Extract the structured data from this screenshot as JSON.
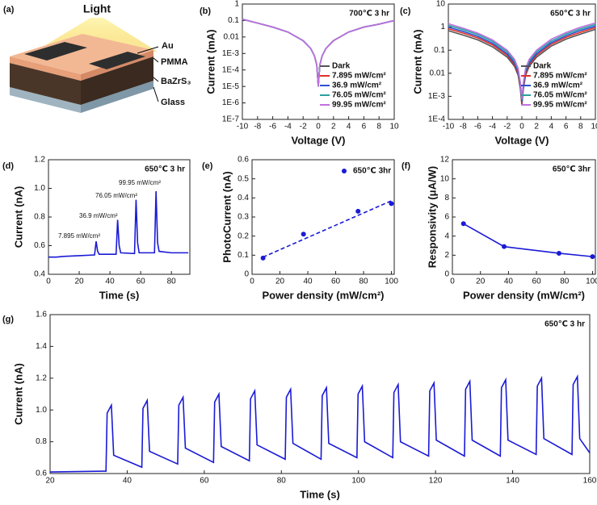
{
  "schematic": {
    "panel": "(a)",
    "light": "Light",
    "layers": [
      "Au",
      "PMMA",
      "BaZrS₃",
      "Glass"
    ]
  },
  "chart_data": [
    {
      "type": "line",
      "panel": "(b)",
      "annotation": "700℃ 3 hr",
      "xlabel": "Voltage (V)",
      "ylabel": "Current (mA)",
      "log_y": true,
      "legend": "lower right",
      "xlim": [
        -10,
        10
      ],
      "xticks": [
        -10,
        -8,
        -6,
        -4,
        -2,
        0,
        2,
        4,
        6,
        8,
        10
      ],
      "ylim": [
        1e-07,
        1
      ],
      "yticks": [
        {
          "value": 1e-07,
          "label": "1E-7"
        },
        {
          "value": 1e-06,
          "label": "1E-6"
        },
        {
          "value": 1e-05,
          "label": "1E-5"
        },
        {
          "value": 0.0001,
          "label": "1E-4"
        },
        {
          "value": 0.001,
          "label": "1E-3"
        },
        0.01,
        0.1,
        1
      ],
      "x": [
        -10,
        -8,
        -6,
        -4,
        -2,
        -1,
        -0.5,
        -0.2,
        0,
        0.2,
        0.5,
        1,
        2,
        4,
        6,
        8,
        10
      ],
      "series": [
        {
          "name": "Dark",
          "color": "#555555",
          "values": [
            0.12,
            0.07,
            0.04,
            0.02,
            0.006,
            0.002,
            0.0007,
            0.0002,
            1e-05,
            0.0002,
            0.0007,
            0.002,
            0.006,
            0.02,
            0.04,
            0.06,
            0.1
          ]
        },
        {
          "name": "7.895 mW/cm²",
          "color": "#e0302a",
          "values": [
            0.12,
            0.07,
            0.04,
            0.02,
            0.006,
            0.002,
            0.0007,
            0.0002,
            1e-05,
            0.0002,
            0.0007,
            0.002,
            0.006,
            0.02,
            0.04,
            0.06,
            0.1
          ]
        },
        {
          "name": "36.9 mW/cm²",
          "color": "#2a50d0",
          "values": [
            0.12,
            0.07,
            0.04,
            0.02,
            0.006,
            0.002,
            0.0007,
            0.0002,
            1e-05,
            0.0002,
            0.0007,
            0.002,
            0.006,
            0.02,
            0.04,
            0.06,
            0.1
          ]
        },
        {
          "name": "76.05 mW/cm²",
          "color": "#2aa0a0",
          "values": [
            0.12,
            0.07,
            0.04,
            0.02,
            0.006,
            0.002,
            0.0007,
            0.0002,
            1e-05,
            0.0002,
            0.0007,
            0.002,
            0.006,
            0.02,
            0.04,
            0.06,
            0.1
          ]
        },
        {
          "name": "99.95 mW/cm²",
          "color": "#c070e0",
          "values": [
            0.12,
            0.07,
            0.04,
            0.02,
            0.006,
            0.002,
            0.0007,
            0.0002,
            1e-05,
            0.0002,
            0.0007,
            0.002,
            0.006,
            0.02,
            0.04,
            0.06,
            0.1
          ]
        }
      ]
    },
    {
      "type": "line",
      "panel": "(c)",
      "annotation": "650℃ 3 hr",
      "xlabel": "Voltage (V)",
      "ylabel": "Current (mA)",
      "log_y": true,
      "legend": "lower right",
      "xlim": [
        -10,
        10
      ],
      "xticks": [
        -10,
        -8,
        -6,
        -4,
        -2,
        0,
        2,
        4,
        6,
        8,
        10
      ],
      "ylim": [
        0.0001,
        10
      ],
      "yticks": [
        {
          "value": 0.0001,
          "label": "1E-4"
        },
        {
          "value": 0.001,
          "label": "1E-3"
        },
        0.01,
        0.1,
        1,
        10
      ],
      "x": [
        -10,
        -8,
        -6,
        -4,
        -2,
        -1,
        -0.5,
        -0.2,
        0,
        0.2,
        0.5,
        1,
        2,
        4,
        6,
        8,
        10
      ],
      "series": [
        {
          "name": "Dark",
          "color": "#555555",
          "values": [
            0.7,
            0.45,
            0.28,
            0.14,
            0.05,
            0.02,
            0.008,
            0.002,
            0.0004,
            0.002,
            0.008,
            0.02,
            0.05,
            0.15,
            0.3,
            0.5,
            0.8
          ]
        },
        {
          "name": "7.895 mW/cm²",
          "color": "#e0302a",
          "values": [
            0.85,
            0.55,
            0.34,
            0.17,
            0.06,
            0.024,
            0.01,
            0.0025,
            0.0005,
            0.0025,
            0.01,
            0.024,
            0.06,
            0.18,
            0.36,
            0.6,
            0.95
          ]
        },
        {
          "name": "36.9 mW/cm²",
          "color": "#2a50d0",
          "values": [
            1.0,
            0.65,
            0.4,
            0.2,
            0.07,
            0.028,
            0.012,
            0.003,
            0.0006,
            0.003,
            0.012,
            0.028,
            0.07,
            0.21,
            0.42,
            0.72,
            1.1
          ]
        },
        {
          "name": "76.05 mW/cm²",
          "color": "#2aa0a0",
          "values": [
            1.2,
            0.78,
            0.48,
            0.24,
            0.085,
            0.034,
            0.014,
            0.0035,
            0.0007,
            0.0035,
            0.014,
            0.034,
            0.085,
            0.25,
            0.5,
            0.85,
            1.3
          ]
        },
        {
          "name": "99.95 mW/cm²",
          "color": "#c070e0",
          "values": [
            1.4,
            0.9,
            0.55,
            0.28,
            0.1,
            0.04,
            0.016,
            0.004,
            0.0008,
            0.004,
            0.016,
            0.04,
            0.1,
            0.3,
            0.58,
            1.0,
            1.5
          ]
        }
      ]
    },
    {
      "type": "line",
      "panel": "(d)",
      "annotation": "650℃ 3 hr",
      "xlabel": "Time (s)",
      "ylabel": "Current (nA)",
      "pulse_labels": [
        "7.895 mW/cm²",
        "36.9 mW/cm²",
        "76.05 mW/cm²",
        "99.95 mW/cm²"
      ],
      "xlim": [
        0,
        92
      ],
      "xticks": [
        0,
        20,
        40,
        60,
        80
      ],
      "ylim": [
        0.4,
        1.2
      ],
      "yticks": [
        0.4,
        0.6,
        0.8,
        {
          "value": 1.0,
          "label": "1.0"
        },
        1.2
      ],
      "x": [
        0,
        5,
        10,
        20,
        30,
        31,
        32,
        33,
        44,
        45,
        46,
        47,
        56,
        57,
        58,
        59,
        69,
        70,
        71,
        72,
        80,
        91
      ],
      "series": [
        {
          "color": "#1a1ad6",
          "values": [
            0.52,
            0.52,
            0.525,
            0.53,
            0.535,
            0.63,
            0.56,
            0.54,
            0.54,
            0.78,
            0.6,
            0.55,
            0.545,
            0.92,
            0.62,
            0.55,
            0.55,
            0.98,
            0.62,
            0.56,
            0.55,
            0.55
          ]
        }
      ]
    },
    {
      "type": "scatter",
      "panel": "(e)",
      "xlabel": "Power density (mW/cm²)",
      "ylabel": "PhotoCurrent (nA)",
      "legend": "upper right",
      "xlim": [
        0,
        102
      ],
      "xticks": [
        0,
        20,
        40,
        60,
        80,
        100
      ],
      "ylim": [
        0,
        0.6
      ],
      "yticks": [
        0,
        0.1,
        0.2,
        0.3,
        0.4,
        0.5,
        0.6
      ],
      "x": [
        7.895,
        36.9,
        76.05,
        99.95
      ],
      "series": [
        {
          "name": "650℃ 3hr",
          "color": "#1a1ad6",
          "values": [
            0.085,
            0.21,
            0.33,
            0.37
          ]
        }
      ],
      "fit": {
        "x": [
          7.895,
          99.95
        ],
        "values": [
          0.09,
          0.385
        ],
        "color": "#1a1ad6",
        "style": "dashed"
      }
    },
    {
      "type": "line",
      "panel": "(f)",
      "annotation": "650℃ 3hr",
      "xlabel": "Power density (mW/cm²)",
      "ylabel": "Responsivity (μA/W)",
      "markers": true,
      "xlim": [
        0,
        102
      ],
      "xticks": [
        0,
        20,
        40,
        60,
        80,
        100
      ],
      "ylim": [
        0,
        12
      ],
      "yticks": [
        0,
        2,
        4,
        6,
        8,
        10,
        12
      ],
      "x": [
        7.895,
        36.9,
        76.05,
        99.95
      ],
      "series": [
        {
          "color": "#1a1ad6",
          "values": [
            5.3,
            2.9,
            2.2,
            1.85
          ]
        }
      ]
    },
    {
      "type": "line",
      "panel": "(g)",
      "annotation": "650℃ 3 hr",
      "xlabel": "Time (s)",
      "ylabel": "Current (nA)",
      "xlim": [
        20,
        160
      ],
      "xticks": [
        20,
        40,
        60,
        80,
        100,
        120,
        140,
        160
      ],
      "ylim": [
        0.6,
        1.6
      ],
      "yticks": [
        0.6,
        0.8,
        {
          "value": 1.0,
          "label": "1.0"
        },
        1.2,
        1.4,
        1.6
      ],
      "x": [
        20,
        34.5,
        34.8,
        35.9,
        36.5,
        43.8,
        44.1,
        45.2,
        45.8,
        53.1,
        53.4,
        54.5,
        55.1,
        62.4,
        62.7,
        63.8,
        64.4,
        71.7,
        72.0,
        73.1,
        73.7,
        81.0,
        81.3,
        82.4,
        83.0,
        90.3,
        90.6,
        91.7,
        92.3,
        99.6,
        99.9,
        101.0,
        101.6,
        108.9,
        109.2,
        110.3,
        110.9,
        118.2,
        118.5,
        119.6,
        120.2,
        127.5,
        127.8,
        128.9,
        129.5,
        136.8,
        137.1,
        138.2,
        138.8,
        146.1,
        146.4,
        147.5,
        148.1,
        155.4,
        155.7,
        156.8,
        157.4,
        160
      ],
      "series": [
        {
          "color": "#1a1ad6",
          "values": [
            0.61,
            0.615,
            0.98,
            1.03,
            0.715,
            0.64,
            1.01,
            1.06,
            0.74,
            0.66,
            1.03,
            1.08,
            0.76,
            0.67,
            1.05,
            1.1,
            0.77,
            0.68,
            1.07,
            1.12,
            0.78,
            0.69,
            1.08,
            1.13,
            0.79,
            0.69,
            1.09,
            1.14,
            0.79,
            0.7,
            1.1,
            1.15,
            0.8,
            0.7,
            1.11,
            1.16,
            0.8,
            0.71,
            1.12,
            1.17,
            0.81,
            0.71,
            1.13,
            1.18,
            0.81,
            0.71,
            1.14,
            1.19,
            0.81,
            0.72,
            1.15,
            1.2,
            0.82,
            0.72,
            1.16,
            1.21,
            0.82,
            0.73
          ]
        }
      ]
    }
  ]
}
